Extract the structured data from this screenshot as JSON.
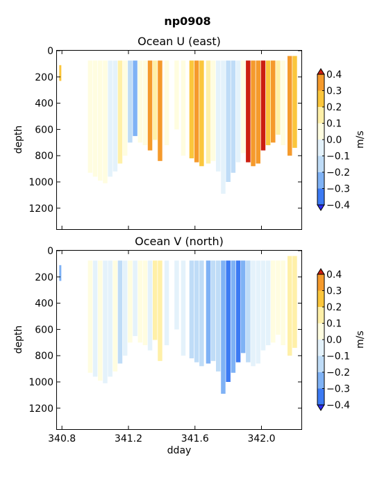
{
  "figure": {
    "title": "np0908"
  },
  "colors": {
    "bins": [
      "#2b2bf0",
      "#3c7af3",
      "#7fb2f5",
      "#bfdcf7",
      "#e4f2fb",
      "#fffde0",
      "#fff0a8",
      "#fbc63c",
      "#f59a2c",
      "#ee6a1a",
      "#cc1f10"
    ]
  },
  "colorbar": {
    "label": "m/s",
    "levels": [
      -0.4,
      -0.3,
      -0.2,
      -0.1,
      0.0,
      0.1,
      0.2,
      0.3,
      0.4
    ],
    "tick_labels": [
      "−0.4",
      "−0.3",
      "−0.2",
      "−0.1",
      "0.0",
      "0.1",
      "0.2",
      "0.3",
      "0.4"
    ]
  },
  "chart_data": [
    {
      "type": "heatmap",
      "title": "Ocean U (east)",
      "xlabel": "",
      "ylabel": "depth",
      "xlim": [
        340.77,
        342.24
      ],
      "ylim": [
        1360,
        0
      ],
      "yticks": [
        0,
        200,
        400,
        600,
        800,
        1000,
        1200
      ],
      "xticks": [
        340.8,
        341.2,
        341.6,
        342.0
      ],
      "xtick_labels": [],
      "units": "m/s",
      "series": [
        {
          "x": 340.79,
          "top": 110,
          "bottom": 230,
          "v": 0.3
        },
        {
          "x": 340.97,
          "top": 75,
          "bottom": 930,
          "v": 0.02
        },
        {
          "x": 341.0,
          "top": 75,
          "bottom": 960,
          "v": 0.05
        },
        {
          "x": 341.03,
          "top": 75,
          "bottom": 990,
          "v": 0.08
        },
        {
          "x": 341.06,
          "top": 75,
          "bottom": 1010,
          "v": 0.04
        },
        {
          "x": 341.09,
          "top": 75,
          "bottom": 960,
          "v": -0.05
        },
        {
          "x": 341.12,
          "top": 75,
          "bottom": 920,
          "v": -0.02
        },
        {
          "x": 341.15,
          "top": 75,
          "bottom": 860,
          "v": 0.12
        },
        {
          "x": 341.18,
          "top": 75,
          "bottom": 800,
          "v": 0.02
        },
        {
          "x": 341.21,
          "top": 75,
          "bottom": 700,
          "v": -0.12
        },
        {
          "x": 341.24,
          "top": 75,
          "bottom": 650,
          "v": -0.25
        },
        {
          "x": 341.27,
          "top": 75,
          "bottom": 700,
          "v": 0.06
        },
        {
          "x": 341.3,
          "top": 75,
          "bottom": 720,
          "v": 0.03
        },
        {
          "x": 341.33,
          "top": 75,
          "bottom": 760,
          "v": 0.32
        },
        {
          "x": 341.36,
          "top": 75,
          "bottom": 680,
          "v": 0.18
        },
        {
          "x": 341.39,
          "top": 75,
          "bottom": 840,
          "v": 0.35
        },
        {
          "x": 341.43,
          "top": 75,
          "bottom": 720,
          "v": 0.06
        },
        {
          "x": 341.49,
          "top": 75,
          "bottom": 600,
          "v": 0.05
        },
        {
          "x": 341.53,
          "top": 75,
          "bottom": 800,
          "v": 0.0
        },
        {
          "x": 341.58,
          "top": 75,
          "bottom": 820,
          "v": 0.22
        },
        {
          "x": 341.61,
          "top": 75,
          "bottom": 850,
          "v": 0.35
        },
        {
          "x": 341.64,
          "top": 75,
          "bottom": 880,
          "v": 0.3
        },
        {
          "x": 341.68,
          "top": 75,
          "bottom": 860,
          "v": 0.1
        },
        {
          "x": 341.71,
          "top": 75,
          "bottom": 840,
          "v": 0.02
        },
        {
          "x": 341.74,
          "top": 75,
          "bottom": 920,
          "v": -0.08
        },
        {
          "x": 341.77,
          "top": 75,
          "bottom": 1090,
          "v": -0.1
        },
        {
          "x": 341.8,
          "top": 75,
          "bottom": 1000,
          "v": -0.12
        },
        {
          "x": 341.83,
          "top": 75,
          "bottom": 930,
          "v": -0.18
        },
        {
          "x": 341.86,
          "top": 75,
          "bottom": 850,
          "v": -0.08
        },
        {
          "x": 341.89,
          "top": 75,
          "bottom": 780,
          "v": 0.0
        },
        {
          "x": 341.92,
          "top": 75,
          "bottom": 850,
          "v": 0.4
        },
        {
          "x": 341.95,
          "top": 75,
          "bottom": 880,
          "v": 0.38
        },
        {
          "x": 341.98,
          "top": 75,
          "bottom": 860,
          "v": 0.35
        },
        {
          "x": 342.01,
          "top": 75,
          "bottom": 760,
          "v": 0.4
        },
        {
          "x": 342.04,
          "top": 75,
          "bottom": 720,
          "v": 0.22
        },
        {
          "x": 342.07,
          "top": 75,
          "bottom": 700,
          "v": 0.36
        },
        {
          "x": 342.1,
          "top": 75,
          "bottom": 640,
          "v": 0.15
        },
        {
          "x": 342.13,
          "top": 75,
          "bottom": 720,
          "v": 0.04
        },
        {
          "x": 342.17,
          "top": 40,
          "bottom": 800,
          "v": 0.37
        },
        {
          "x": 342.2,
          "top": 40,
          "bottom": 740,
          "v": 0.3
        }
      ]
    },
    {
      "type": "heatmap",
      "title": "Ocean V (north)",
      "xlabel": "dday",
      "ylabel": "depth",
      "xlim": [
        340.77,
        342.24
      ],
      "ylim": [
        1360,
        0
      ],
      "yticks": [
        0,
        200,
        400,
        600,
        800,
        1000,
        1200
      ],
      "xticks": [
        340.8,
        341.2,
        341.6,
        342.0
      ],
      "xtick_labels": [
        "340.8",
        "341.2",
        "341.6",
        "342.0"
      ],
      "units": "m/s",
      "series": [
        {
          "x": 340.79,
          "top": 110,
          "bottom": 230,
          "v": -0.3
        },
        {
          "x": 340.97,
          "top": 75,
          "bottom": 930,
          "v": 0.05
        },
        {
          "x": 341.0,
          "top": 75,
          "bottom": 960,
          "v": -0.03
        },
        {
          "x": 341.03,
          "top": 75,
          "bottom": 990,
          "v": 0.06
        },
        {
          "x": 341.06,
          "top": 75,
          "bottom": 1010,
          "v": -0.05
        },
        {
          "x": 341.09,
          "top": 75,
          "bottom": 960,
          "v": -0.08
        },
        {
          "x": 341.12,
          "top": 75,
          "bottom": 920,
          "v": 0.03
        },
        {
          "x": 341.15,
          "top": 75,
          "bottom": 860,
          "v": -0.12
        },
        {
          "x": 341.18,
          "top": 75,
          "bottom": 800,
          "v": -0.04
        },
        {
          "x": 341.21,
          "top": 75,
          "bottom": 700,
          "v": 0.04
        },
        {
          "x": 341.24,
          "top": 75,
          "bottom": 650,
          "v": -0.06
        },
        {
          "x": 341.27,
          "top": 75,
          "bottom": 700,
          "v": 0.02
        },
        {
          "x": 341.3,
          "top": 75,
          "bottom": 720,
          "v": 0.05
        },
        {
          "x": 341.33,
          "top": 75,
          "bottom": 760,
          "v": -0.02
        },
        {
          "x": 341.36,
          "top": 75,
          "bottom": 680,
          "v": 0.15
        },
        {
          "x": 341.39,
          "top": 75,
          "bottom": 840,
          "v": 0.12
        },
        {
          "x": 341.43,
          "top": 75,
          "bottom": 720,
          "v": -0.05
        },
        {
          "x": 341.49,
          "top": 75,
          "bottom": 600,
          "v": -0.05
        },
        {
          "x": 341.53,
          "top": 75,
          "bottom": 800,
          "v": -0.1
        },
        {
          "x": 341.58,
          "top": 75,
          "bottom": 820,
          "v": -0.15
        },
        {
          "x": 341.61,
          "top": 75,
          "bottom": 850,
          "v": -0.2
        },
        {
          "x": 341.64,
          "top": 75,
          "bottom": 880,
          "v": -0.12
        },
        {
          "x": 341.68,
          "top": 75,
          "bottom": 860,
          "v": -0.22
        },
        {
          "x": 341.71,
          "top": 75,
          "bottom": 840,
          "v": -0.18
        },
        {
          "x": 341.74,
          "top": 75,
          "bottom": 920,
          "v": -0.15
        },
        {
          "x": 341.77,
          "top": 75,
          "bottom": 1090,
          "v": -0.22
        },
        {
          "x": 341.8,
          "top": 75,
          "bottom": 1000,
          "v": -0.35
        },
        {
          "x": 341.83,
          "top": 75,
          "bottom": 930,
          "v": -0.28
        },
        {
          "x": 341.86,
          "top": 75,
          "bottom": 850,
          "v": -0.35
        },
        {
          "x": 341.89,
          "top": 75,
          "bottom": 780,
          "v": -0.25
        },
        {
          "x": 341.92,
          "top": 75,
          "bottom": 850,
          "v": -0.15
        },
        {
          "x": 341.95,
          "top": 75,
          "bottom": 880,
          "v": -0.1
        },
        {
          "x": 341.98,
          "top": 75,
          "bottom": 860,
          "v": -0.05
        },
        {
          "x": 342.01,
          "top": 75,
          "bottom": 760,
          "v": -0.08
        },
        {
          "x": 342.04,
          "top": 75,
          "bottom": 720,
          "v": -0.05
        },
        {
          "x": 342.07,
          "top": 75,
          "bottom": 700,
          "v": 0.03
        },
        {
          "x": 342.1,
          "top": 75,
          "bottom": 640,
          "v": 0.05
        },
        {
          "x": 342.13,
          "top": 75,
          "bottom": 720,
          "v": 0.02
        },
        {
          "x": 342.17,
          "top": 40,
          "bottom": 800,
          "v": 0.18
        },
        {
          "x": 342.2,
          "top": 40,
          "bottom": 740,
          "v": 0.15
        }
      ]
    }
  ]
}
